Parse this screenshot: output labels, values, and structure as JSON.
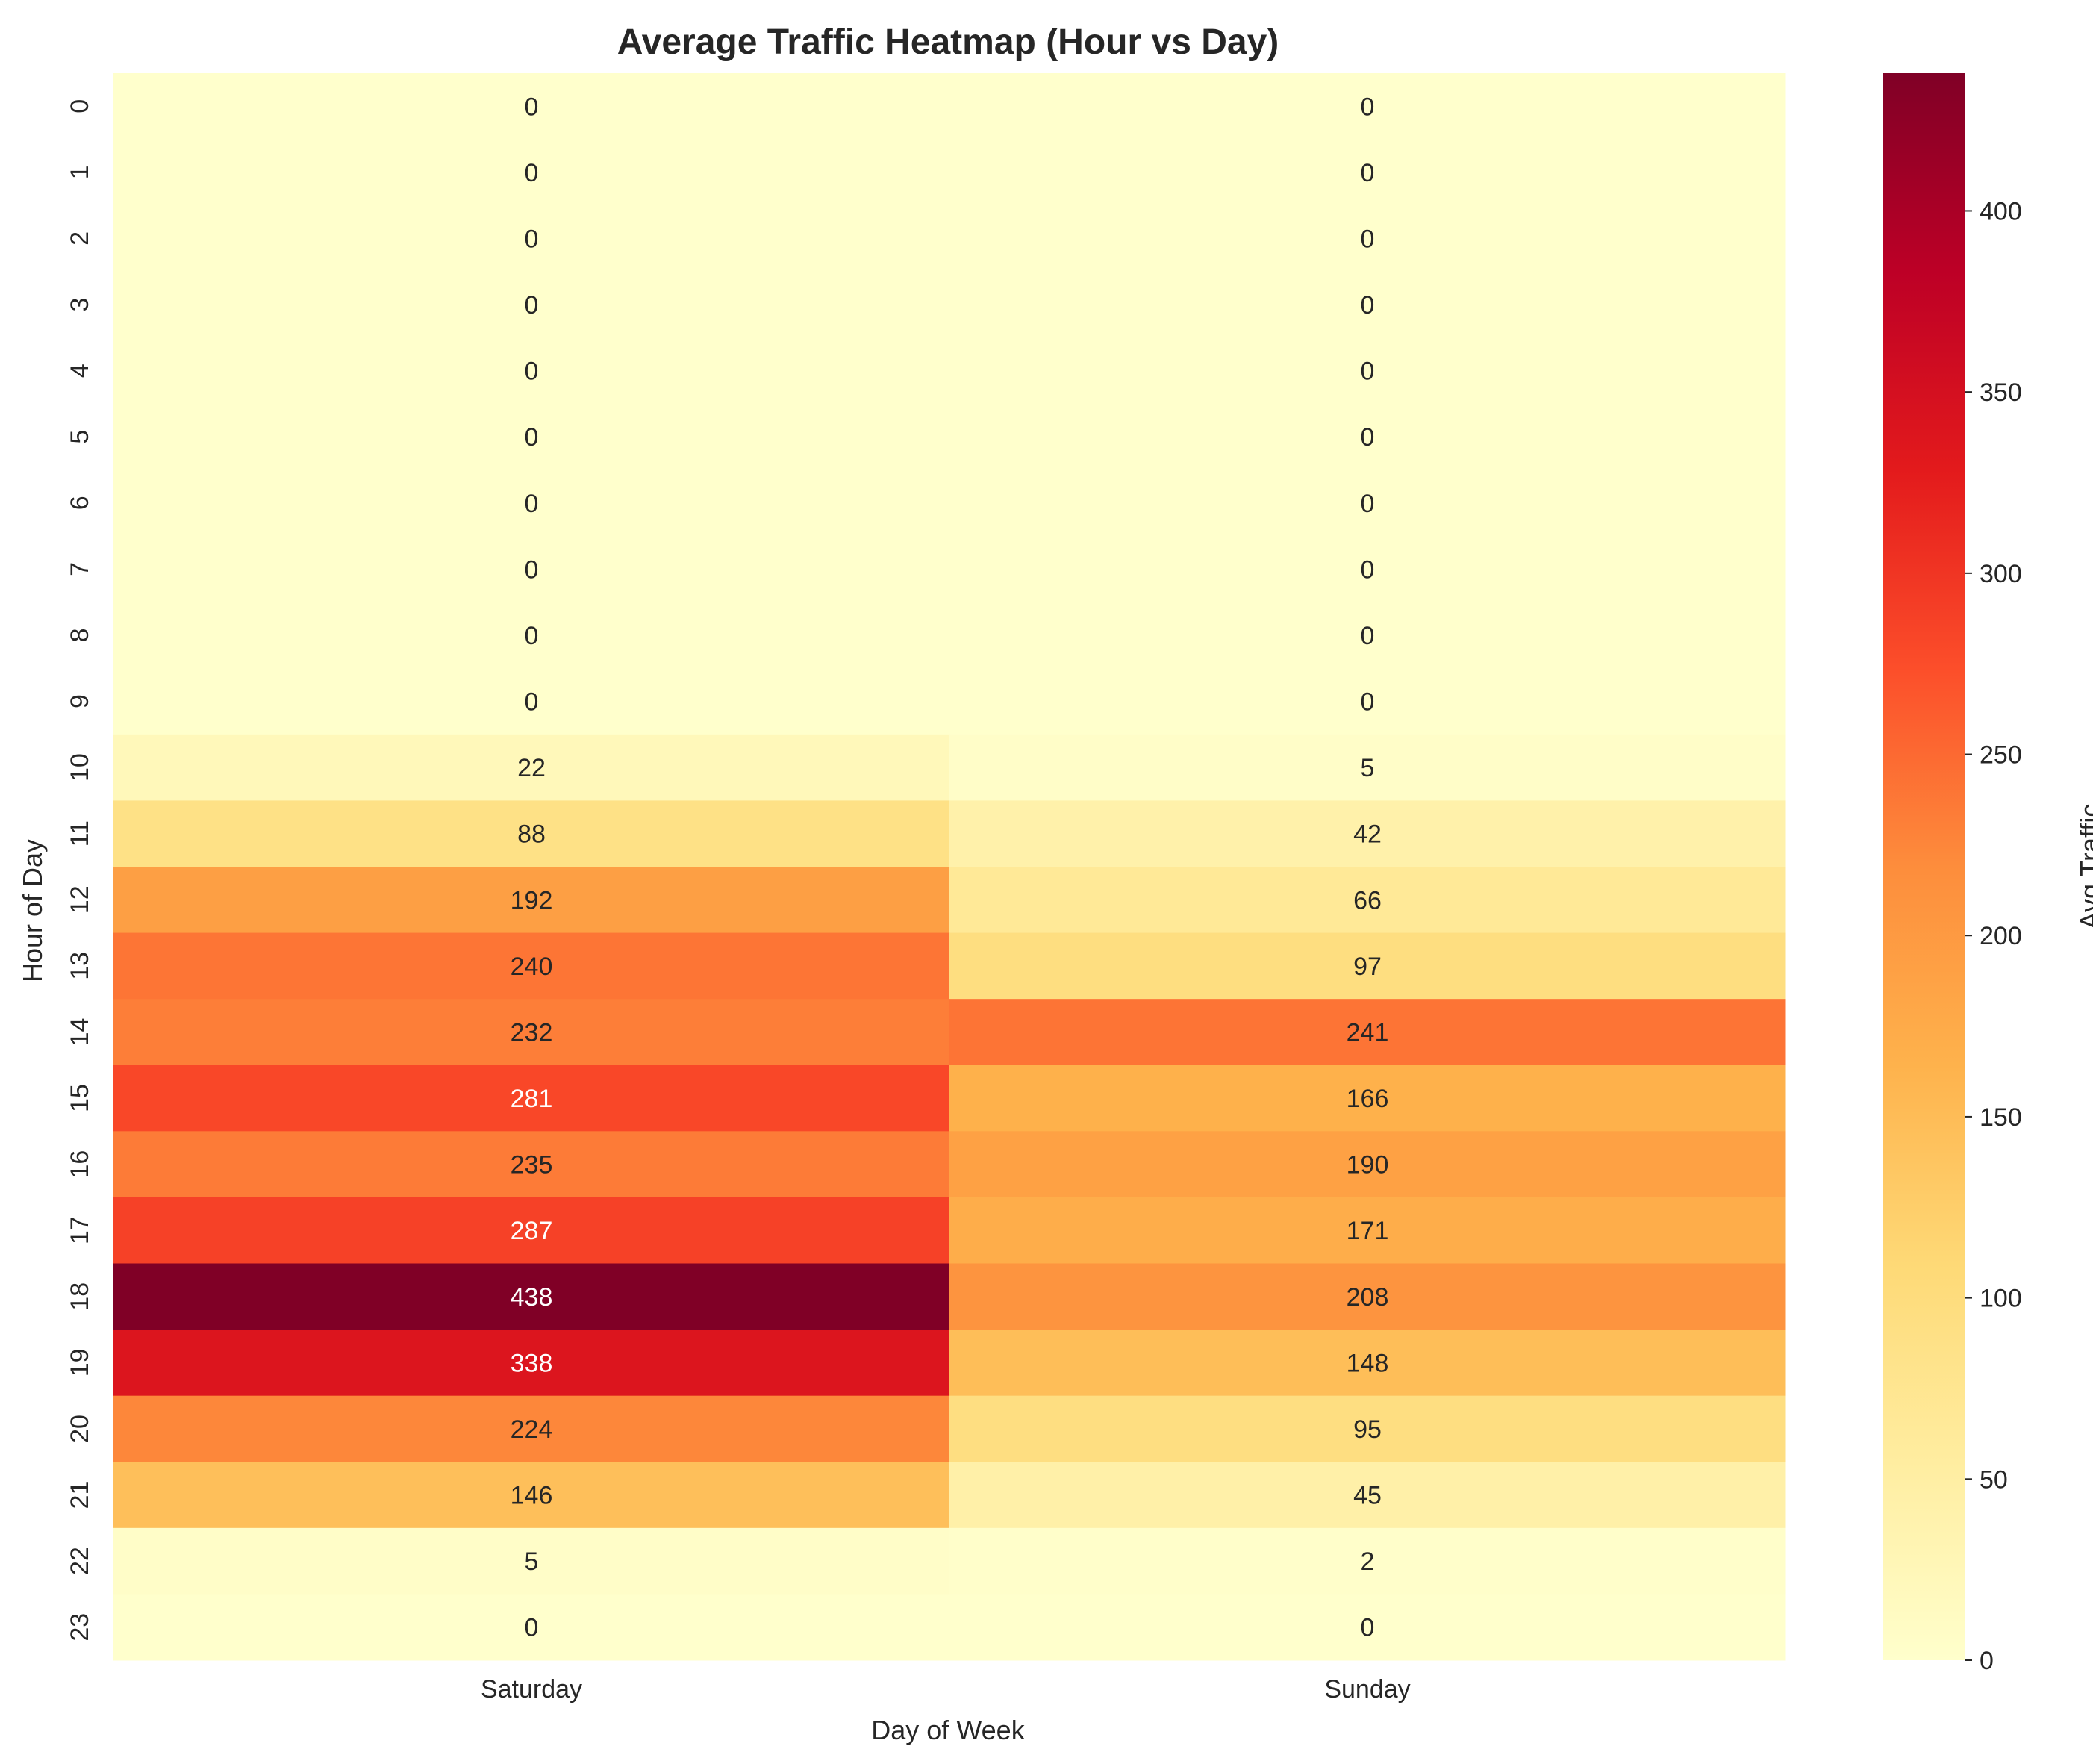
{
  "chart_data": {
    "type": "heatmap",
    "title": "Average Traffic Heatmap (Hour vs Day)",
    "xlabel": "Day of Week",
    "ylabel": "Hour of Day",
    "x_categories": [
      "Saturday",
      "Sunday"
    ],
    "y_categories": [
      "0",
      "1",
      "2",
      "3",
      "4",
      "5",
      "6",
      "7",
      "8",
      "9",
      "10",
      "11",
      "12",
      "13",
      "14",
      "15",
      "16",
      "17",
      "18",
      "19",
      "20",
      "21",
      "22",
      "23"
    ],
    "values": [
      [
        0,
        0
      ],
      [
        0,
        0
      ],
      [
        0,
        0
      ],
      [
        0,
        0
      ],
      [
        0,
        0
      ],
      [
        0,
        0
      ],
      [
        0,
        0
      ],
      [
        0,
        0
      ],
      [
        0,
        0
      ],
      [
        0,
        0
      ],
      [
        22,
        5
      ],
      [
        88,
        42
      ],
      [
        192,
        66
      ],
      [
        240,
        97
      ],
      [
        232,
        241
      ],
      [
        281,
        166
      ],
      [
        235,
        190
      ],
      [
        287,
        171
      ],
      [
        438,
        208
      ],
      [
        338,
        148
      ],
      [
        224,
        95
      ],
      [
        146,
        45
      ],
      [
        5,
        2
      ],
      [
        0,
        0
      ]
    ],
    "colormap": "YlOrRd",
    "vmin": 0,
    "vmax": 438,
    "colorbar": {
      "label": "Avg Traffic",
      "ticks": [
        0,
        50,
        100,
        150,
        200,
        250,
        300,
        350,
        400
      ]
    },
    "grid": false
  }
}
